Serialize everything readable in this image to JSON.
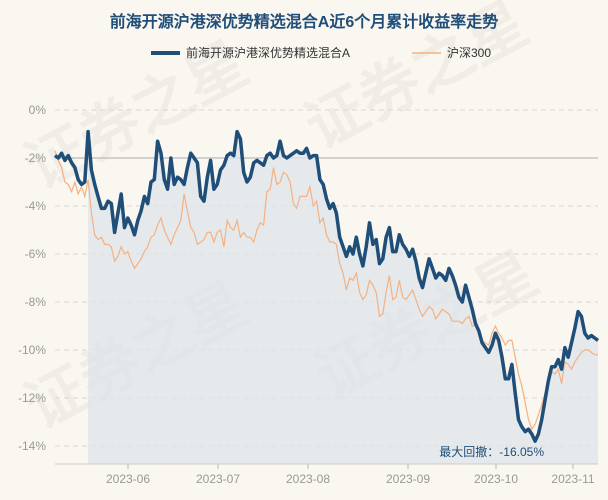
{
  "chart_data": {
    "type": "line",
    "title": "前海开源沪港深优势精选混合A近6个月累计收益率走势",
    "legend_position": "top",
    "grid": true,
    "colors": {
      "fund": "#1f4e79",
      "index": "#f4b183",
      "area": "#dde4ea"
    },
    "x_ticks": [
      "2023-06",
      "2023-07",
      "2023-08",
      "2023-09",
      "2023-10",
      "2023-11"
    ],
    "y_ticks": [
      "0%",
      "-2%",
      "-4%",
      "-6%",
      "-8%",
      "-10%",
      "-12%",
      "-14%"
    ],
    "ylim": [
      -14.5,
      1.0
    ],
    "annotation": "最大回撤：-16.05%",
    "watermark": "证券之星",
    "series": [
      {
        "name": "前海开源沪港深优势精选混合A",
        "values": [
          -1.9,
          -2.0,
          -1.8,
          -2.1,
          -1.9,
          -2.2,
          -2.4,
          -2.9,
          -3.1,
          -3.0,
          -0.9,
          -2.5,
          -3.1,
          -3.6,
          -4.1,
          -4.1,
          -3.8,
          -3.9,
          -5.1,
          -4.3,
          -3.5,
          -4.9,
          -4.5,
          -4.8,
          -5.2,
          -4.6,
          -4.2,
          -3.6,
          -3.9,
          -3.0,
          -2.9,
          -1.3,
          -1.8,
          -2.9,
          -3.3,
          -2.0,
          -3.1,
          -2.8,
          -2.9,
          -3.1,
          -2.4,
          -1.8,
          -2.0,
          -2.2,
          -3.6,
          -3.8,
          -2.8,
          -2.1,
          -3.3,
          -3.1,
          -2.5,
          -2.3,
          -1.9,
          -1.8,
          -1.9,
          -0.9,
          -1.2,
          -2.6,
          -3.0,
          -2.8,
          -2.2,
          -2.1,
          -2.2,
          -2.3,
          -1.9,
          -1.8,
          -2.0,
          -1.9,
          -1.3,
          -1.9,
          -2.0,
          -1.9,
          -1.8,
          -1.7,
          -1.8,
          -1.8,
          -1.6,
          -2.0,
          -1.9,
          -1.9,
          -2.9,
          -3.1,
          -3.7,
          -4.1,
          -3.9,
          -4.3,
          -5.3,
          -5.7,
          -6.1,
          -5.7,
          -6.0,
          -5.3,
          -6.0,
          -6.5,
          -5.7,
          -4.7,
          -5.6,
          -5.4,
          -6.4,
          -6.2,
          -5.3,
          -4.9,
          -5.9,
          -5.9,
          -5.2,
          -5.6,
          -5.8,
          -6.1,
          -5.8,
          -6.3,
          -7.0,
          -7.4,
          -6.8,
          -6.2,
          -6.6,
          -7.0,
          -6.8,
          -6.9,
          -7.1,
          -6.6,
          -6.9,
          -7.3,
          -7.8,
          -8.0,
          -7.3,
          -7.8,
          -8.3,
          -8.9,
          -9.2,
          -9.7,
          -9.9,
          -10.1,
          -9.8,
          -9.3,
          -9.6,
          -10.3,
          -11.2,
          -11.2,
          -10.6,
          -11.8,
          -12.9,
          -13.2,
          -13.4,
          -13.3,
          -13.5,
          -13.8,
          -13.5,
          -12.9,
          -12.1,
          -11.3,
          -10.7,
          -10.7,
          -10.4,
          -10.8,
          -9.9,
          -10.3,
          -9.7,
          -9.1,
          -8.4,
          -8.6,
          -9.3,
          -9.5,
          -9.4,
          -9.5,
          -9.6
        ]
      },
      {
        "name": "沪深300",
        "values": [
          -1.7,
          -2.1,
          -2.4,
          -3.0,
          -3.1,
          -3.4,
          -3.0,
          -3.5,
          -3.2,
          -3.6,
          -2.9,
          -4.3,
          -5.2,
          -5.4,
          -5.3,
          -5.6,
          -5.6,
          -5.7,
          -6.3,
          -6.1,
          -5.7,
          -6.0,
          -5.9,
          -6.3,
          -6.6,
          -6.4,
          -6.2,
          -5.9,
          -5.7,
          -5.3,
          -5.2,
          -4.8,
          -4.5,
          -5.0,
          -5.3,
          -5.6,
          -5.2,
          -4.9,
          -4.6,
          -3.5,
          -4.2,
          -4.9,
          -5.1,
          -5.6,
          -5.5,
          -5.4,
          -5.1,
          -5.1,
          -5.5,
          -5.1,
          -5.0,
          -5.7,
          -4.6,
          -4.9,
          -5.0,
          -4.6,
          -5.3,
          -5.1,
          -5.3,
          -5.3,
          -5.5,
          -5.0,
          -4.7,
          -4.8,
          -3.4,
          -3.3,
          -2.4,
          -3.1,
          -3.0,
          -2.6,
          -2.7,
          -3.0,
          -3.9,
          -4.1,
          -3.6,
          -3.6,
          -3.6,
          -3.2,
          -4.0,
          -3.8,
          -4.7,
          -4.5,
          -5.2,
          -5.5,
          -5.5,
          -5.6,
          -6.4,
          -6.8,
          -7.5,
          -7.0,
          -7.1,
          -6.8,
          -7.6,
          -7.9,
          -7.7,
          -7.1,
          -7.3,
          -7.6,
          -8.6,
          -8.5,
          -7.6,
          -6.9,
          -7.9,
          -7.8,
          -7.1,
          -7.8,
          -7.9,
          -7.7,
          -7.5,
          -7.9,
          -8.3,
          -8.6,
          -8.4,
          -8.2,
          -8.3,
          -8.7,
          -8.5,
          -8.3,
          -8.4,
          -8.5,
          -8.8,
          -8.8,
          -8.8,
          -8.9,
          -8.7,
          -8.6,
          -9.0,
          -9.0,
          -9.1,
          -9.6,
          -9.7,
          -9.8,
          -9.3,
          -9.0,
          -9.3,
          -9.5,
          -9.8,
          -9.6,
          -9.6,
          -10.3,
          -11.0,
          -11.5,
          -12.2,
          -12.9,
          -13.3,
          -13.1,
          -12.7,
          -12.3,
          -11.8,
          -11.3,
          -10.9,
          -11.0,
          -10.8,
          -11.4,
          -10.5,
          -10.6,
          -10.8,
          -10.5,
          -10.3,
          -10.1,
          -10.0,
          -10.0,
          -10.1,
          -10.2,
          -10.2
        ]
      }
    ]
  }
}
